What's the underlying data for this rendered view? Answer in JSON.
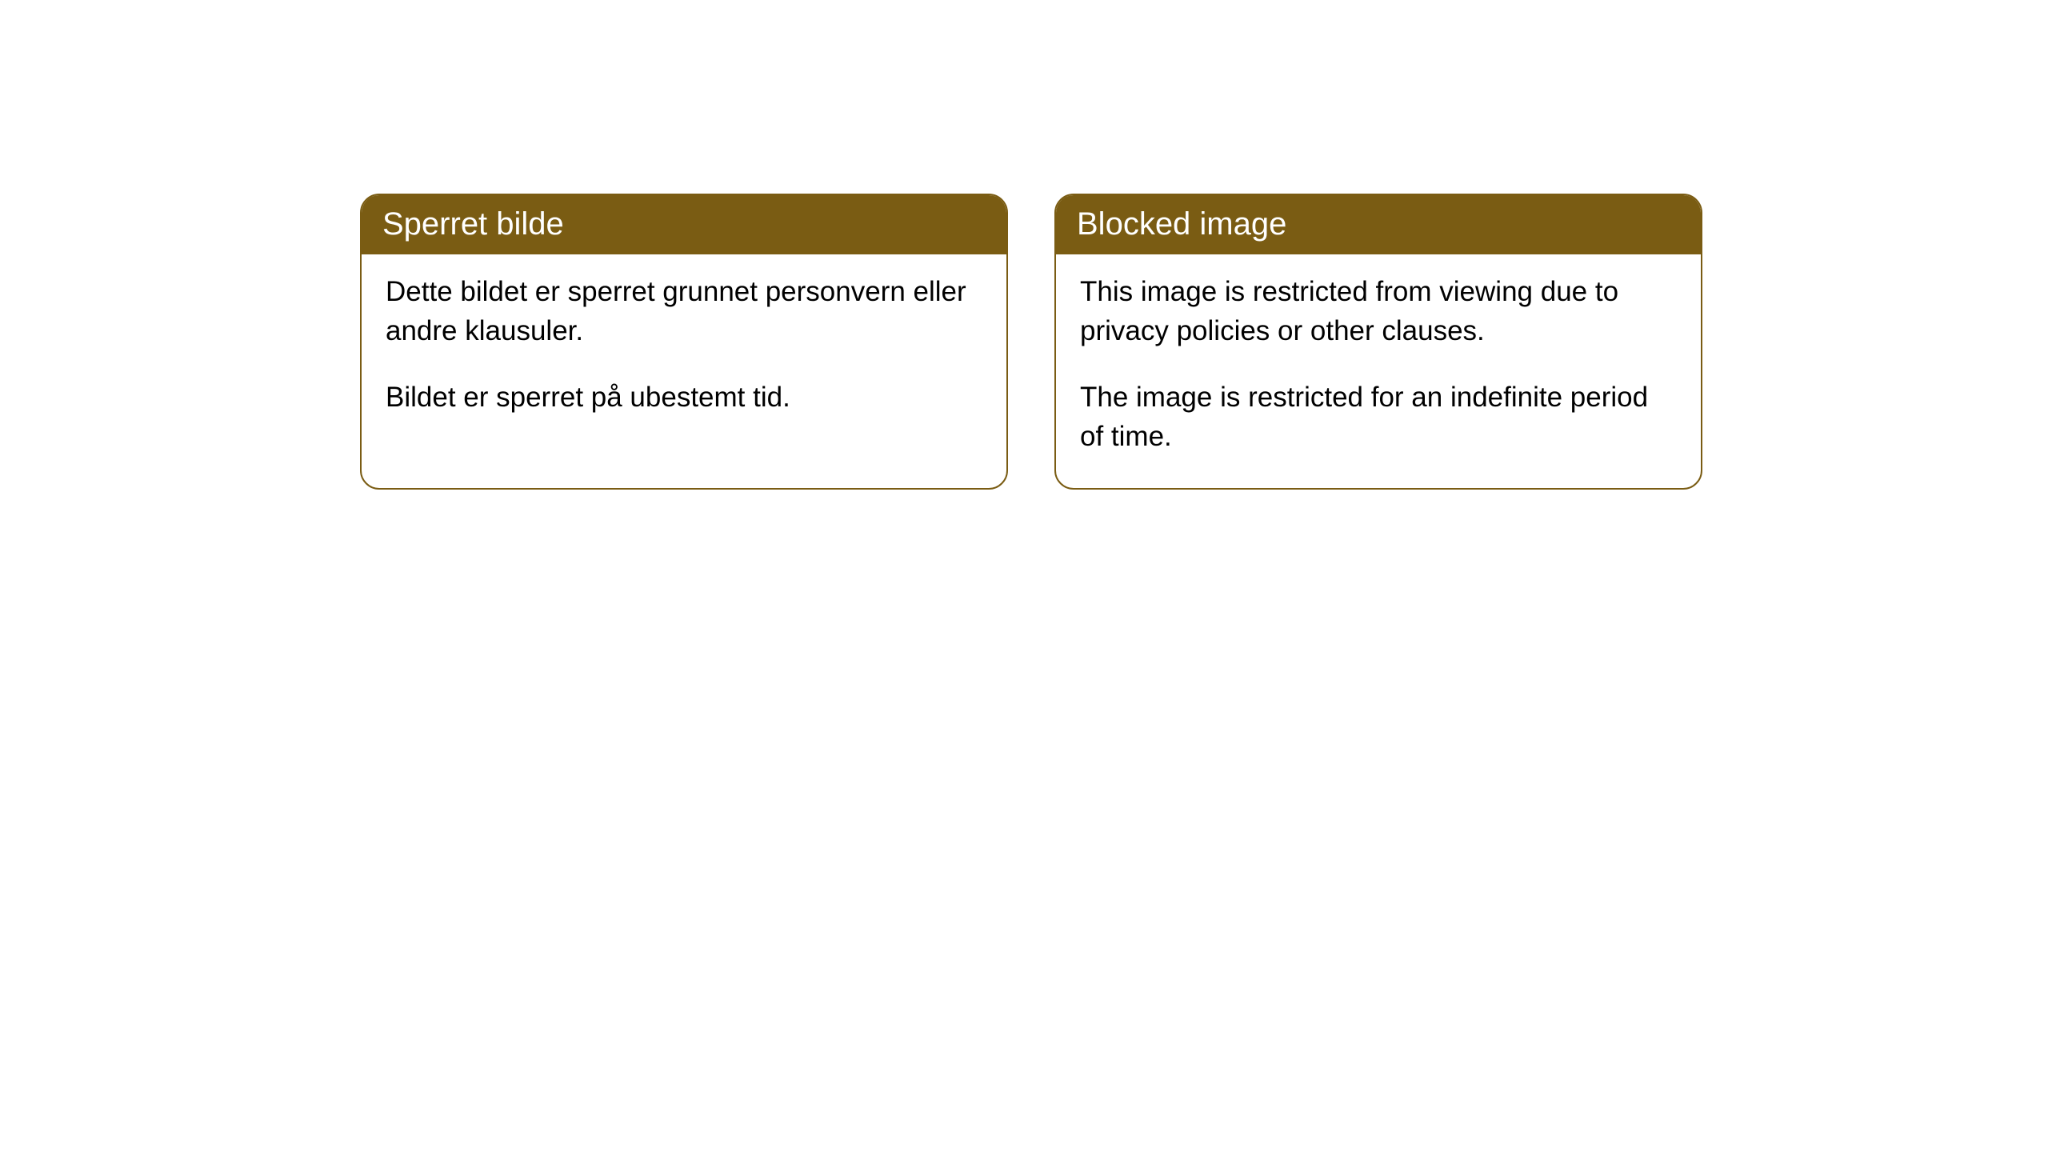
{
  "cards": [
    {
      "title": "Sperret bilde",
      "para1": "Dette bildet er sperret grunnet personvern eller andre klausuler.",
      "para2": "Bildet er sperret på ubestemt tid."
    },
    {
      "title": "Blocked image",
      "para1": "This image is restricted from viewing due to privacy policies or other clauses.",
      "para2": "The image is restricted for an indefinite period of time."
    }
  ],
  "style": {
    "header_bg": "#7a5c13",
    "header_text_color": "#ffffff",
    "border_color": "#7a5c13",
    "body_bg": "#ffffff",
    "body_text_color": "#000000",
    "border_radius": 24,
    "title_fontsize": 40,
    "body_fontsize": 35
  }
}
